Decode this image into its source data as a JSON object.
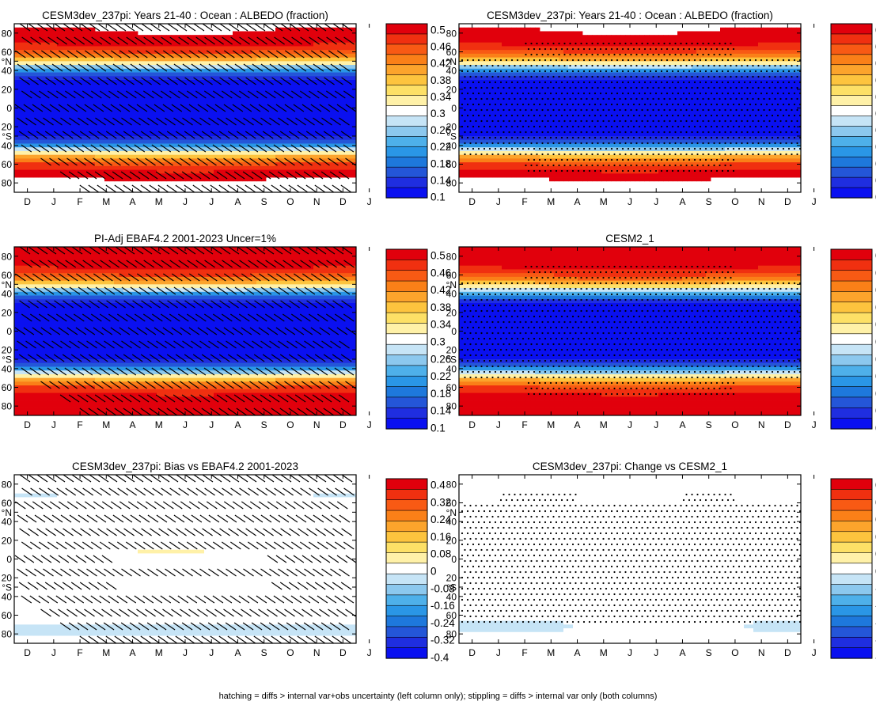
{
  "months": [
    "D",
    "J",
    "F",
    "M",
    "A",
    "M",
    "J",
    "J",
    "A",
    "S",
    "O",
    "N",
    "D",
    "J"
  ],
  "lat_ticks": [
    "80",
    "60",
    "°N",
    "40",
    "20",
    "0",
    "20",
    "°S",
    "40",
    "60",
    "80"
  ],
  "footnote": "hatching = diffs > internal var+obs uncertainty (left column only); stippling = diffs > internal var only (both columns)",
  "colorbars": {
    "abs": {
      "labels": [
        "0.5",
        "0.46",
        "0.42",
        "0.38",
        "0.34",
        "0.3",
        "0.26",
        "0.22",
        "0.18",
        "0.14",
        "0.1"
      ],
      "colors": [
        "#e1000c",
        "#f03010",
        "#f85a14",
        "#fa8018",
        "#fca42c",
        "#fdc43e",
        "#fde066",
        "#fff1a8",
        "#ffffff",
        "#c6e4f6",
        "#8cc8ee",
        "#4eb0ea",
        "#2a96e6",
        "#1e78dc",
        "#2456d8",
        "#1f2ee0",
        "#0a10f0"
      ]
    },
    "diff": {
      "labels": [
        "0.4",
        "0.32",
        "0.24",
        "0.16",
        "0.08",
        "0",
        "-0.08",
        "-0.16",
        "-0.24",
        "-0.32",
        "-0.4"
      ],
      "colors": [
        "#e1000c",
        "#f03010",
        "#f85a14",
        "#fa8018",
        "#fca42c",
        "#fdc43e",
        "#fde066",
        "#fff1a8",
        "#ffffff",
        "#c6e4f6",
        "#8cc8ee",
        "#4eb0ea",
        "#2a96e6",
        "#1e78dc",
        "#2456d8",
        "#1f2ee0",
        "#0a10f0"
      ]
    }
  },
  "chart_data": [
    {
      "type": "heatmap",
      "title": "CESM3dev_237pi: Years 21-40 : Ocean : ALBEDO (fraction)",
      "x": [
        "D",
        "J",
        "F",
        "M",
        "A",
        "M",
        "J",
        "J",
        "A",
        "S",
        "O",
        "N",
        "D",
        "J"
      ],
      "ylim": [
        -90,
        90
      ],
      "zlim": [
        0.1,
        0.5
      ],
      "field": "abs",
      "overlay": "hatch"
    },
    {
      "type": "heatmap",
      "title": "CESM3dev_237pi: Years 21-40 : Ocean : ALBEDO (fraction)",
      "x": [
        "D",
        "J",
        "F",
        "M",
        "A",
        "M",
        "J",
        "J",
        "A",
        "S",
        "O",
        "N",
        "D",
        "J"
      ],
      "ylim": [
        -90,
        90
      ],
      "zlim": [
        0.1,
        0.5
      ],
      "field": "abs",
      "overlay": "stipple"
    },
    {
      "type": "heatmap",
      "title": "PI-Adj EBAF4.2 2001-2023 Uncer=1%",
      "x": [
        "D",
        "J",
        "F",
        "M",
        "A",
        "M",
        "J",
        "J",
        "A",
        "S",
        "O",
        "N",
        "D",
        "J"
      ],
      "ylim": [
        -90,
        90
      ],
      "zlim": [
        0.1,
        0.5
      ],
      "field": "abs",
      "overlay": "hatch"
    },
    {
      "type": "heatmap",
      "title": "CESM2_1",
      "x": [
        "D",
        "J",
        "F",
        "M",
        "A",
        "M",
        "J",
        "J",
        "A",
        "S",
        "O",
        "N",
        "D",
        "J"
      ],
      "ylim": [
        -90,
        90
      ],
      "zlim": [
        0.1,
        0.5
      ],
      "field": "abs",
      "overlay": "stipple"
    },
    {
      "type": "heatmap",
      "title": "CESM3dev_237pi: Bias vs EBAF4.2 2001-2023",
      "x": [
        "D",
        "J",
        "F",
        "M",
        "A",
        "M",
        "J",
        "J",
        "A",
        "S",
        "O",
        "N",
        "D",
        "J"
      ],
      "ylim": [
        -90,
        90
      ],
      "zlim": [
        -0.4,
        0.4
      ],
      "field": "diff_bias",
      "overlay": "hatch"
    },
    {
      "type": "heatmap",
      "title": "CESM3dev_237pi: Change vs CESM2_1",
      "x": [
        "D",
        "J",
        "F",
        "M",
        "A",
        "M",
        "J",
        "J",
        "A",
        "S",
        "O",
        "N",
        "D",
        "J"
      ],
      "ylim": [
        -90,
        90
      ],
      "zlim": [
        -0.4,
        0.4
      ],
      "field": "diff_change",
      "overlay": "stipple"
    }
  ]
}
